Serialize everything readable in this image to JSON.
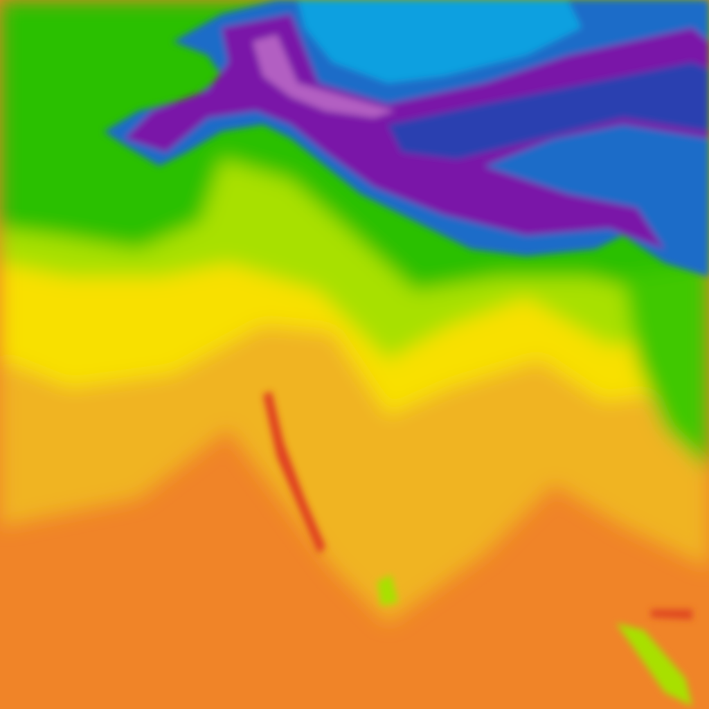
{
  "map": {
    "type": "temperature-heatmap-tile",
    "palette": {
      "purple_light": "#c070c8",
      "purple": "#7a18a8",
      "dark_blue": "#2040b0",
      "blue": "#1a6cc8",
      "light_blue": "#0aa0e0",
      "green": "#2cc000",
      "yellow_green": "#a8e000",
      "yellow": "#f8e800",
      "gold": "#f0b420",
      "orange": "#f08428",
      "red": "#e03c20"
    }
  }
}
